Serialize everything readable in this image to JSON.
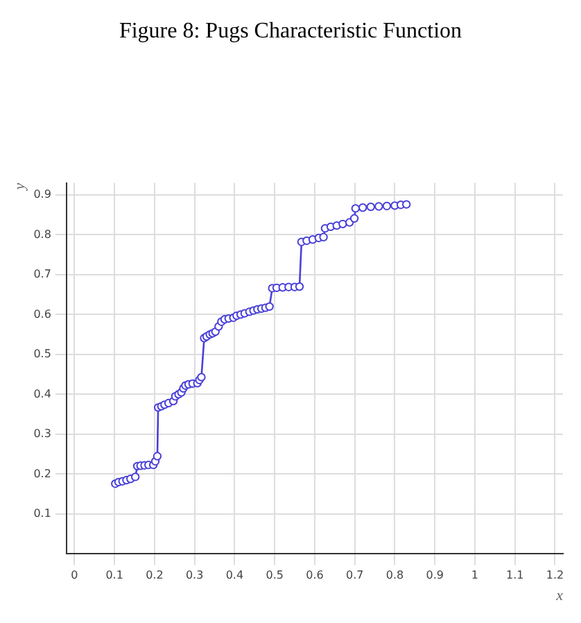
{
  "chart_data": {
    "type": "line",
    "title": "Figure 8: Pugs Characteristic Function",
    "xlabel": "x",
    "ylabel": "y",
    "series": [
      {
        "color": "#4a40d8",
        "x": [
          0.102,
          0.11,
          0.12,
          0.13,
          0.14,
          0.152,
          0.157,
          0.165,
          0.175,
          0.185,
          0.197,
          0.202,
          0.207,
          0.209,
          0.217,
          0.225,
          0.235,
          0.247,
          0.252,
          0.26,
          0.267,
          0.272,
          0.277,
          0.285,
          0.295,
          0.307,
          0.312,
          0.317,
          0.324,
          0.33,
          0.338,
          0.345,
          0.352,
          0.36,
          0.367,
          0.375,
          0.385,
          0.397,
          0.405,
          0.415,
          0.425,
          0.437,
          0.447,
          0.457,
          0.467,
          0.477,
          0.487,
          0.494,
          0.505,
          0.52,
          0.535,
          0.55,
          0.562,
          0.567,
          0.58,
          0.595,
          0.61,
          0.622,
          0.626,
          0.64,
          0.655,
          0.67,
          0.687,
          0.699,
          0.702,
          0.72,
          0.74,
          0.76,
          0.78,
          0.8,
          0.815,
          0.829
        ],
        "values": [
          0.176,
          0.18,
          0.182,
          0.185,
          0.188,
          0.193,
          0.22,
          0.221,
          0.222,
          0.223,
          0.223,
          0.232,
          0.245,
          0.367,
          0.37,
          0.374,
          0.378,
          0.383,
          0.395,
          0.4,
          0.405,
          0.415,
          0.422,
          0.425,
          0.427,
          0.428,
          0.436,
          0.443,
          0.541,
          0.545,
          0.55,
          0.553,
          0.557,
          0.57,
          0.582,
          0.588,
          0.59,
          0.592,
          0.597,
          0.6,
          0.603,
          0.607,
          0.61,
          0.613,
          0.615,
          0.617,
          0.62,
          0.666,
          0.667,
          0.668,
          0.669,
          0.669,
          0.67,
          0.782,
          0.785,
          0.788,
          0.792,
          0.794,
          0.816,
          0.82,
          0.823,
          0.827,
          0.831,
          0.841,
          0.866,
          0.868,
          0.87,
          0.871,
          0.872,
          0.873,
          0.875,
          0.876
        ]
      }
    ],
    "xlim": [
      -0.02,
      1.22
    ],
    "ylim": [
      0,
      0.93
    ],
    "xticks": [
      0,
      0.1,
      0.2,
      0.3,
      0.4,
      0.5,
      0.6,
      0.7,
      0.8,
      0.9,
      1,
      1.1,
      1.2
    ],
    "yticks": [
      0.1,
      0.2,
      0.3,
      0.4,
      0.5,
      0.6,
      0.7,
      0.8,
      0.9
    ],
    "grid": true,
    "marker": "circle",
    "line_style": "solid"
  }
}
